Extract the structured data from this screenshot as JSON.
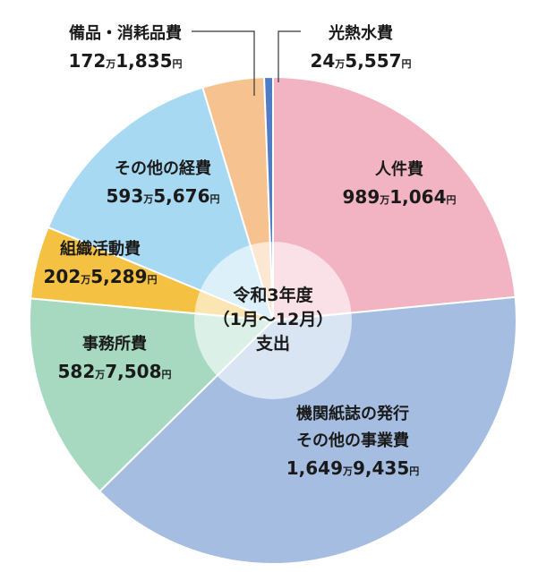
{
  "chart_data": {
    "type": "pie",
    "center_label": [
      "令和3年度",
      "（1月〜12月）",
      "支出"
    ],
    "slices": [
      {
        "name": "人件費",
        "name2": "",
        "amount_man": "989",
        "amount_rest": "1,064",
        "value": 9891064,
        "color": "#f2b3c2"
      },
      {
        "name": "機関紙誌の発行",
        "name2": "その他の事業費",
        "amount_man": "1,649",
        "amount_rest": "9,435",
        "value": 16499435,
        "color": "#a4bde0"
      },
      {
        "name": "事務所費",
        "name2": "",
        "amount_man": "582",
        "amount_rest": "7,508",
        "value": 5827508,
        "color": "#a6d9c0"
      },
      {
        "name": "組織活動費",
        "name2": "",
        "amount_man": "202",
        "amount_rest": "5,289",
        "value": 2025289,
        "color": "#f5c142"
      },
      {
        "name": "その他の経費",
        "name2": "",
        "amount_man": "593",
        "amount_rest": "5,676",
        "value": 5935676,
        "color": "#a8d9f2"
      },
      {
        "name": "備品・消耗品費",
        "name2": "",
        "amount_man": "172",
        "amount_rest": "1,835",
        "value": 1721835,
        "color": "#f6c28f"
      },
      {
        "name": "光熱水費",
        "name2": "",
        "amount_man": "24",
        "amount_rest": "5,557",
        "value": 245557,
        "color": "#4f7cc4"
      }
    ],
    "unit_man": "万",
    "unit_yen": "円"
  }
}
